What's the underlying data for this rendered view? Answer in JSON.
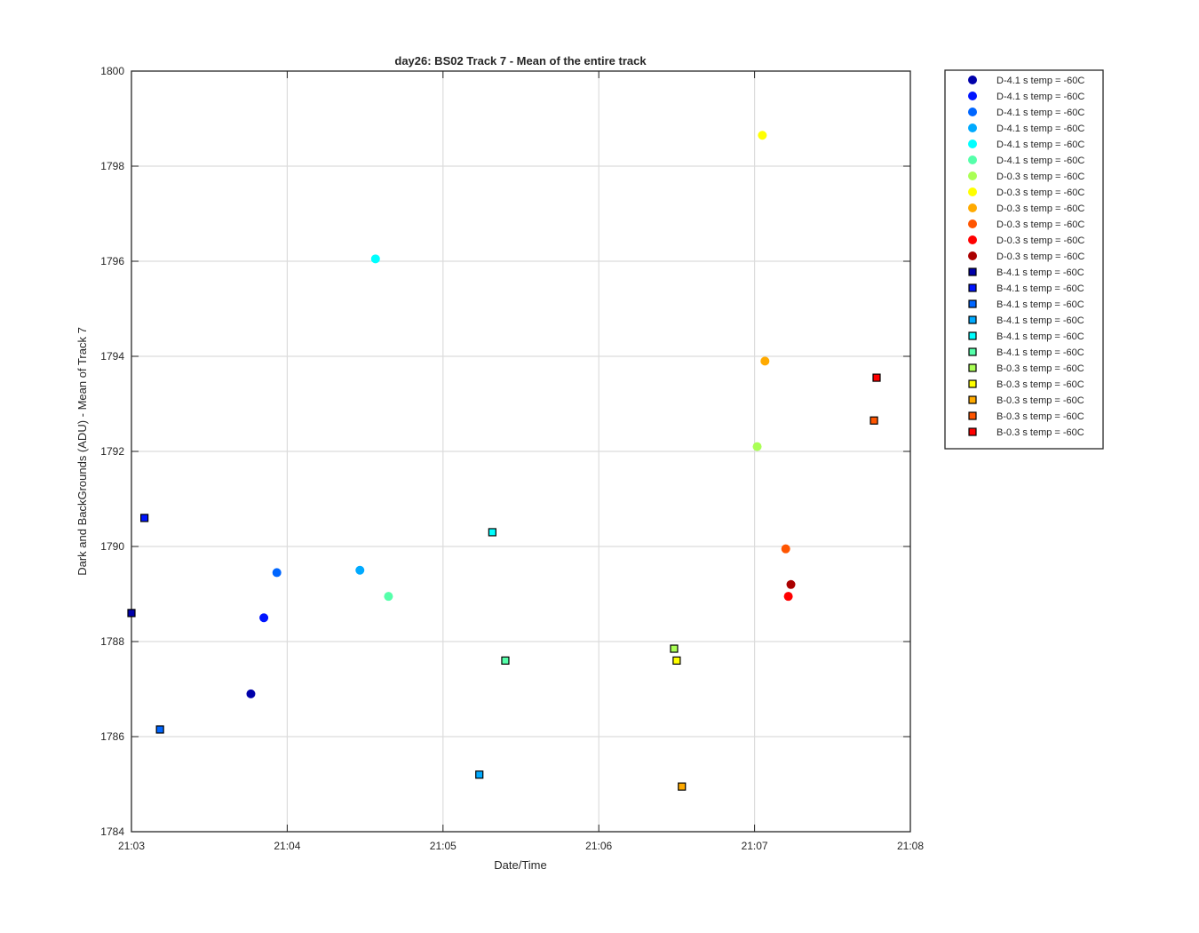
{
  "chart_data": {
    "type": "scatter",
    "title": "day26: BS02  Track 7 - Mean of the entire track",
    "xlabel": "Date/Time",
    "ylabel": "Dark and BackGrounds (ADU) - Mean of Track 7",
    "xlim": [
      "21:03",
      "21:08"
    ],
    "ylim": [
      1784,
      1800
    ],
    "x_ticks": [
      "21:03",
      "21:04",
      "21:05",
      "21:06",
      "21:07",
      "21:08"
    ],
    "y_ticks": [
      1784,
      1786,
      1788,
      1790,
      1792,
      1794,
      1796,
      1798,
      1800
    ],
    "grid": true,
    "legend_position": "outside-right",
    "series": [
      {
        "name": "D-4.1 s temp = -60C",
        "marker": "circle",
        "color": "#0000AA",
        "points": [
          {
            "x": "21:03:46",
            "y": 1786.9
          }
        ]
      },
      {
        "name": "D-4.1 s temp = -60C",
        "marker": "circle",
        "color": "#0015FF",
        "points": [
          {
            "x": "21:03:51",
            "y": 1788.5
          }
        ]
      },
      {
        "name": "D-4.1 s temp = -60C",
        "marker": "circle",
        "color": "#0066FF",
        "points": [
          {
            "x": "21:03:56",
            "y": 1789.45
          }
        ]
      },
      {
        "name": "D-4.1 s temp = -60C",
        "marker": "circle",
        "color": "#00AAFF",
        "points": [
          {
            "x": "21:04:28",
            "y": 1789.5
          }
        ]
      },
      {
        "name": "D-4.1 s temp = -60C",
        "marker": "circle",
        "color": "#00FFFF",
        "points": [
          {
            "x": "21:04:34",
            "y": 1796.05
          }
        ]
      },
      {
        "name": "D-4.1 s temp = -60C",
        "marker": "circle",
        "color": "#55FFAA",
        "points": [
          {
            "x": "21:04:39",
            "y": 1788.95
          }
        ]
      },
      {
        "name": "D-0.3 s temp = -60C",
        "marker": "circle",
        "color": "#AAFF55",
        "points": [
          {
            "x": "21:07:01",
            "y": 1792.1
          }
        ]
      },
      {
        "name": "D-0.3 s temp = -60C",
        "marker": "circle",
        "color": "#FFFF00",
        "points": [
          {
            "x": "21:07:03",
            "y": 1798.65
          }
        ]
      },
      {
        "name": "D-0.3 s temp = -60C",
        "marker": "circle",
        "color": "#FFAA00",
        "points": [
          {
            "x": "21:07:04",
            "y": 1793.9
          }
        ]
      },
      {
        "name": "D-0.3 s temp = -60C",
        "marker": "circle",
        "color": "#FF5500",
        "points": [
          {
            "x": "21:07:12",
            "y": 1789.95
          }
        ]
      },
      {
        "name": "D-0.3 s temp = -60C",
        "marker": "circle",
        "color": "#FF0000",
        "points": [
          {
            "x": "21:07:13",
            "y": 1788.95
          }
        ]
      },
      {
        "name": "D-0.3 s temp = -60C",
        "marker": "circle",
        "color": "#AA0000",
        "points": [
          {
            "x": "21:07:14",
            "y": 1789.2
          }
        ]
      },
      {
        "name": "B-4.1 s temp = -60C",
        "marker": "square",
        "color": "#0000AA",
        "points": [
          {
            "x": "21:03:00",
            "y": 1788.6
          }
        ]
      },
      {
        "name": "B-4.1 s temp = -60C",
        "marker": "square",
        "color": "#0015FF",
        "points": [
          {
            "x": "21:03:05",
            "y": 1790.6
          }
        ]
      },
      {
        "name": "B-4.1 s temp = -60C",
        "marker": "square",
        "color": "#0066FF",
        "points": [
          {
            "x": "21:03:11",
            "y": 1786.15
          }
        ]
      },
      {
        "name": "B-4.1 s temp = -60C",
        "marker": "square",
        "color": "#00AAFF",
        "points": [
          {
            "x": "21:05:14",
            "y": 1785.2
          }
        ]
      },
      {
        "name": "B-4.1 s temp = -60C",
        "marker": "square",
        "color": "#00FFFF",
        "points": [
          {
            "x": "21:05:19",
            "y": 1790.3
          }
        ]
      },
      {
        "name": "B-4.1 s temp = -60C",
        "marker": "square",
        "color": "#55FFAA",
        "points": [
          {
            "x": "21:05:24",
            "y": 1787.6
          }
        ]
      },
      {
        "name": "B-0.3 s temp = -60C",
        "marker": "square",
        "color": "#AAFF55",
        "points": [
          {
            "x": "21:06:29",
            "y": 1787.85
          }
        ]
      },
      {
        "name": "B-0.3 s temp = -60C",
        "marker": "square",
        "color": "#FFFF00",
        "points": [
          {
            "x": "21:06:30",
            "y": 1787.6
          }
        ]
      },
      {
        "name": "B-0.3 s temp = -60C",
        "marker": "square",
        "color": "#FFAA00",
        "points": [
          {
            "x": "21:06:32",
            "y": 1784.95
          }
        ]
      },
      {
        "name": "B-0.3 s temp = -60C",
        "marker": "square",
        "color": "#FF5500",
        "points": [
          {
            "x": "21:07:46",
            "y": 1792.65
          }
        ]
      },
      {
        "name": "B-0.3 s temp = -60C",
        "marker": "square",
        "color": "#FF0000",
        "points": [
          {
            "x": "21:07:47",
            "y": 1793.55
          }
        ]
      }
    ]
  }
}
